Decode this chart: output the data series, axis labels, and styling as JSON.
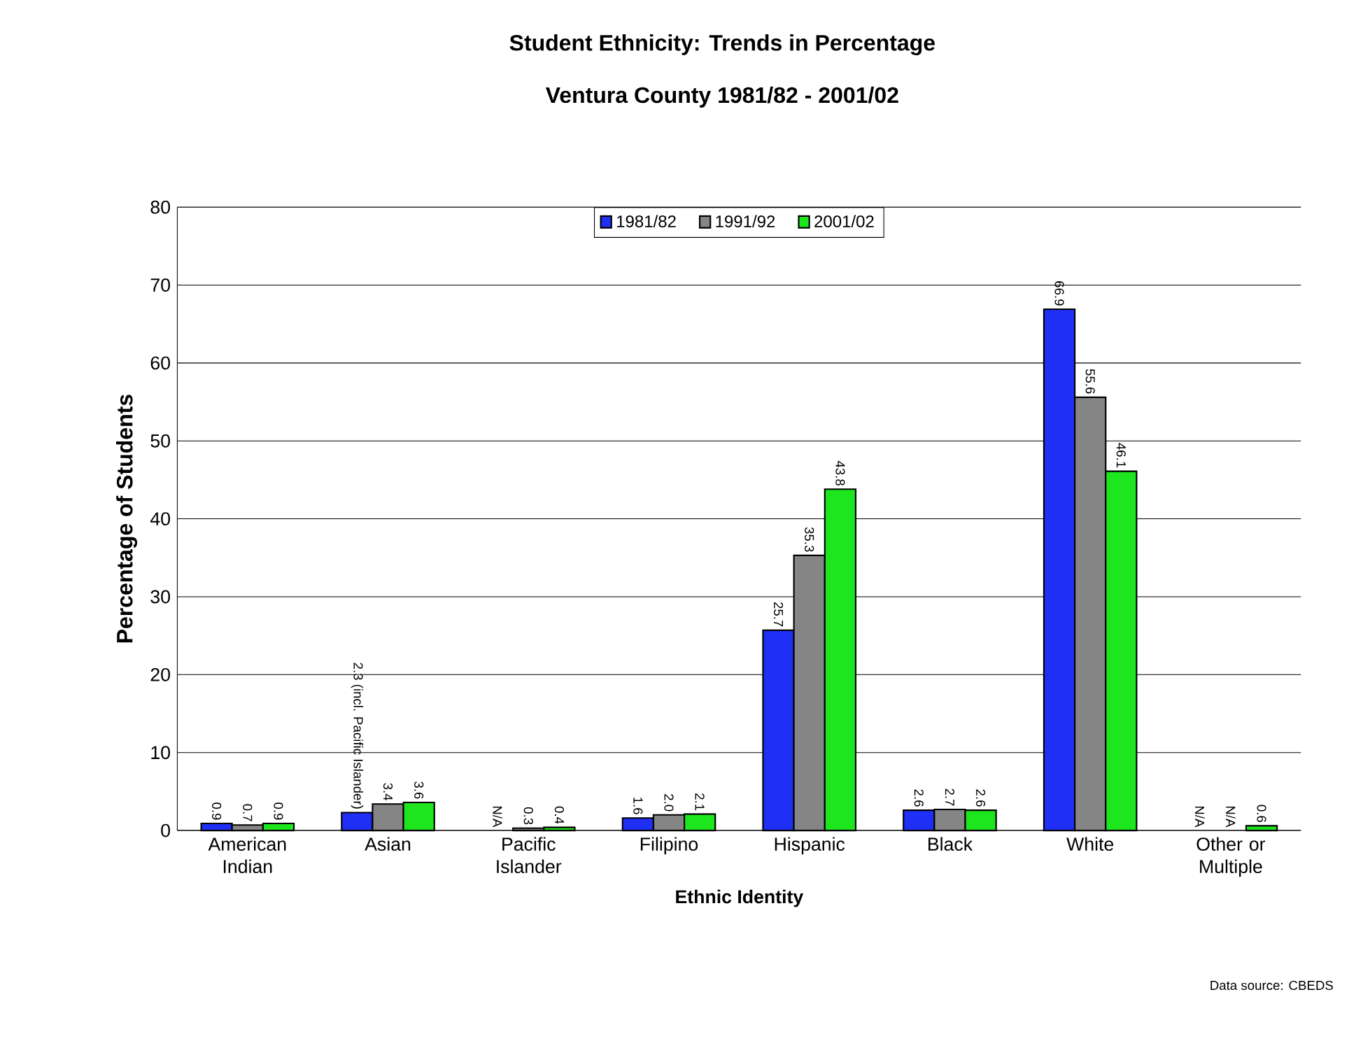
{
  "chart_data": {
    "type": "bar",
    "title": "Student Ethnicity: Trends in Percentage",
    "subtitle": "Ventura County 1981/82 - 2001/02",
    "xlabel": "Ethnic Identity",
    "ylabel": "Percentage of Students",
    "categories": [
      "American Indian",
      "Asian",
      "Pacific Islander",
      "Filipino",
      "Hispanic",
      "Black",
      "White",
      "Other or Multiple"
    ],
    "series": [
      {
        "name": "1981/82",
        "color": "#1f2ff5",
        "values": [
          0.9,
          2.3,
          null,
          1.6,
          25.7,
          2.6,
          66.9,
          null
        ],
        "value_labels": [
          "0.9",
          "2.3 (incl. Pacific Islander)",
          "N/A",
          "1.6",
          "25.7",
          "2.6",
          "66.9",
          "N/A"
        ]
      },
      {
        "name": "1991/92",
        "color": "#858585",
        "values": [
          0.7,
          3.4,
          0.3,
          2.0,
          35.3,
          2.7,
          55.6,
          null
        ],
        "value_labels": [
          "0.7",
          "3.4",
          "0.3",
          "2.0",
          "35.3",
          "2.7",
          "55.6",
          "N/A"
        ]
      },
      {
        "name": "2001/02",
        "color": "#1ee61e",
        "values": [
          0.9,
          3.6,
          0.4,
          2.1,
          43.8,
          2.6,
          46.1,
          0.6
        ],
        "value_labels": [
          "0.9",
          "3.6",
          "0.4",
          "2.1",
          "43.8",
          "2.6",
          "46.1",
          "0.6"
        ]
      }
    ],
    "ylim": [
      0,
      80
    ],
    "yticks": [
      0,
      10,
      20,
      30,
      40,
      50,
      60,
      70,
      80
    ],
    "grid": "y",
    "legend": "top",
    "annotations": [
      "Data source: CBEDS"
    ]
  }
}
